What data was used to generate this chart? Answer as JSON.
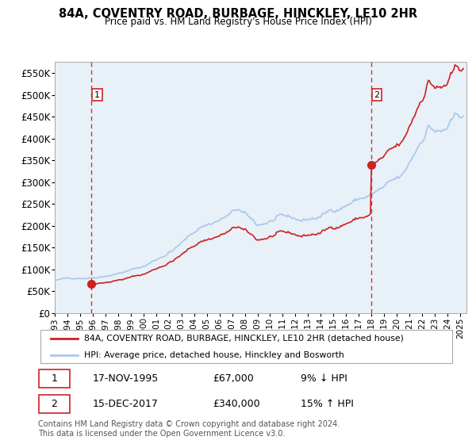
{
  "title_line1": "84A, COVENTRY ROAD, BURBAGE, HINCKLEY, LE10 2HR",
  "title_line2": "Price paid vs. HM Land Registry's House Price Index (HPI)",
  "ylim": [
    0,
    575000
  ],
  "yticks": [
    0,
    50000,
    100000,
    150000,
    200000,
    250000,
    300000,
    350000,
    400000,
    450000,
    500000,
    550000
  ],
  "ytick_labels": [
    "£0",
    "£50K",
    "£100K",
    "£150K",
    "£200K",
    "£250K",
    "£300K",
    "£350K",
    "£400K",
    "£450K",
    "£500K",
    "£550K"
  ],
  "hpi_color": "#a8c8e8",
  "price_color": "#cc2222",
  "dot_color": "#cc2222",
  "bg_hatch_color": "#e0e0ec",
  "bg_plot_color": "#e8f0f8",
  "purchase1_price": 67000,
  "purchase1_label": "17-NOV-1995",
  "purchase1_amount": "£67,000",
  "purchase1_pct": "9% ↓ HPI",
  "purchase2_price": 340000,
  "purchase2_label": "15-DEC-2017",
  "purchase2_amount": "£340,000",
  "purchase2_pct": "15% ↑ HPI",
  "legend_label1": "84A, COVENTRY ROAD, BURBAGE, HINCKLEY, LE10 2HR (detached house)",
  "legend_label2": "HPI: Average price, detached house, Hinckley and Bosworth",
  "footer": "Contains HM Land Registry data © Crown copyright and database right 2024.\nThis data is licensed under the Open Government Licence v3.0.",
  "x_start_year": 1993.0,
  "x_end_year": 2025.5,
  "xtick_years": [
    1993,
    1994,
    1995,
    1996,
    1997,
    1998,
    1999,
    2000,
    2001,
    2002,
    2003,
    2004,
    2005,
    2006,
    2007,
    2008,
    2009,
    2010,
    2011,
    2012,
    2013,
    2014,
    2015,
    2016,
    2017,
    2018,
    2019,
    2020,
    2021,
    2022,
    2023,
    2024,
    2025
  ]
}
